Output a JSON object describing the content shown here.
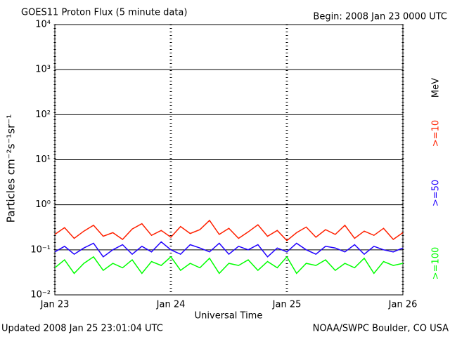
{
  "chart_data": {
    "type": "line",
    "title": "GOES11 Proton Flux (5 minute data)",
    "subtitle": "Begin: 2008 Jan 23 0000 UTC",
    "x_label": "Universal Time",
    "y_label": "Particles cm⁻²s⁻¹sr⁻¹",
    "legend_unit": "MeV",
    "footer_left": "Updated 2008 Jan 25 23:01:04 UTC",
    "footer_right": "NOAA/SWPC Boulder, CO USA",
    "log_y": true,
    "grid": true,
    "xlim": [
      0,
      72
    ],
    "xticks": [
      {
        "value": 0,
        "label": "Jan 23"
      },
      {
        "value": 24,
        "label": "Jan 24"
      },
      {
        "value": 48,
        "label": "Jan 25"
      },
      {
        "value": 72,
        "label": "Jan 26"
      }
    ],
    "ylim": [
      0.01,
      10000
    ],
    "yticks": [
      {
        "value": 0.01,
        "label": "10⁻²"
      },
      {
        "value": 0.1,
        "label": "10⁻¹"
      },
      {
        "value": 1,
        "label": "10⁰"
      },
      {
        "value": 10,
        "label": "10¹"
      },
      {
        "value": 100,
        "label": "10²"
      },
      {
        "value": 1000,
        "label": "10³"
      },
      {
        "value": 10000,
        "label": "10⁴"
      }
    ],
    "x": [
      0,
      2,
      4,
      6,
      8,
      10,
      12,
      14,
      16,
      18,
      20,
      22,
      24,
      26,
      28,
      30,
      32,
      34,
      36,
      38,
      40,
      42,
      44,
      46,
      48,
      50,
      52,
      54,
      56,
      58,
      60,
      62,
      64,
      66,
      68,
      70,
      72
    ],
    "series": [
      {
        "name": ">=10",
        "color": "#ff2000",
        "values": [
          0.22,
          0.31,
          0.18,
          0.26,
          0.35,
          0.2,
          0.24,
          0.17,
          0.29,
          0.38,
          0.21,
          0.27,
          0.19,
          0.33,
          0.23,
          0.28,
          0.45,
          0.22,
          0.3,
          0.18,
          0.25,
          0.36,
          0.2,
          0.27,
          0.16,
          0.24,
          0.32,
          0.19,
          0.28,
          0.22,
          0.35,
          0.18,
          0.26,
          0.21,
          0.3,
          0.17,
          0.24
        ]
      },
      {
        "name": ">=50",
        "color": "#2000ff",
        "values": [
          0.09,
          0.12,
          0.08,
          0.11,
          0.14,
          0.07,
          0.1,
          0.13,
          0.08,
          0.12,
          0.09,
          0.15,
          0.1,
          0.08,
          0.13,
          0.11,
          0.09,
          0.14,
          0.08,
          0.12,
          0.1,
          0.13,
          0.07,
          0.11,
          0.09,
          0.14,
          0.1,
          0.08,
          0.12,
          0.11,
          0.09,
          0.13,
          0.08,
          0.12,
          0.1,
          0.09,
          0.11
        ]
      },
      {
        "name": ">=100",
        "color": "#00ff00",
        "values": [
          0.04,
          0.06,
          0.03,
          0.05,
          0.07,
          0.035,
          0.05,
          0.04,
          0.06,
          0.03,
          0.055,
          0.045,
          0.07,
          0.035,
          0.05,
          0.04,
          0.065,
          0.03,
          0.05,
          0.045,
          0.06,
          0.035,
          0.055,
          0.04,
          0.07,
          0.03,
          0.05,
          0.045,
          0.06,
          0.035,
          0.05,
          0.04,
          0.065,
          0.03,
          0.055,
          0.045,
          0.05
        ]
      }
    ]
  }
}
